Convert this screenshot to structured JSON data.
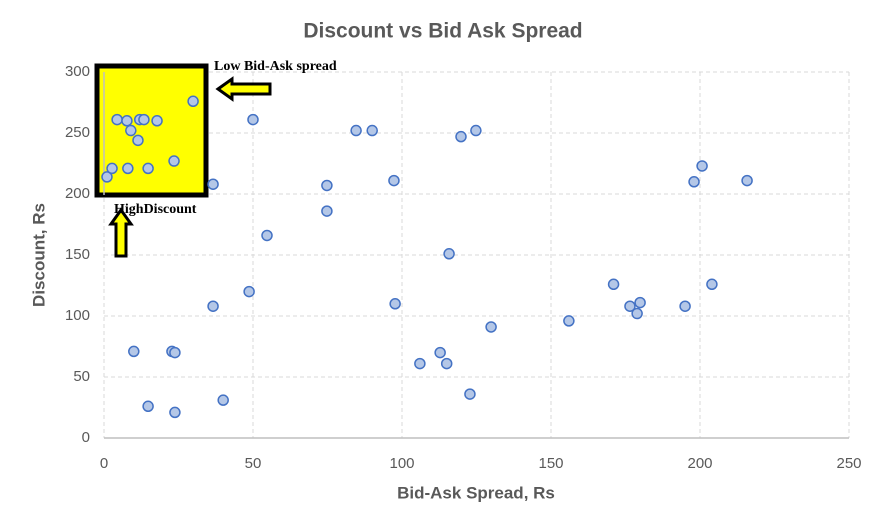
{
  "chart_data": {
    "type": "scatter",
    "title": "Discount vs Bid Ask Spread",
    "x_label": "Bid-Ask Spread, Rs",
    "y_label": "Discount, Rs",
    "annotations": [
      "Low Bid-Ask spread",
      "HighDiscount"
    ],
    "series": [
      {
        "color": "#4472c4",
        "x": [
          1,
          2.7,
          4.4,
          7.7,
          9,
          11.4,
          12,
          13.4,
          17.8,
          8,
          14.8,
          23.5,
          29.9,
          36.6,
          50,
          48.7,
          36.6,
          54.7,
          10,
          22.8,
          23.8,
          14.8,
          23.8,
          40,
          74.8,
          74.8,
          84.6,
          90,
          97.3,
          97.7,
          106,
          112.8,
          115,
          115.8,
          119.8,
          124.8,
          122.8,
          129.9,
          156,
          171,
          176.5,
          178.9,
          179.9,
          195,
          198,
          200.7,
          204,
          215.8
        ],
        "values": [
          214,
          221,
          261,
          260,
          252,
          244,
          261,
          261,
          260,
          221,
          221,
          227,
          276,
          208,
          261,
          120,
          108,
          166,
          71,
          71,
          70,
          26,
          21,
          31,
          207,
          186,
          252,
          252,
          211,
          110,
          61,
          70,
          61,
          151,
          247,
          252,
          36,
          91,
          96,
          126,
          108,
          102,
          111,
          108,
          210,
          223,
          126,
          211
        ]
      }
    ],
    "xlim": [
      0,
      250
    ],
    "xticks": [
      0,
      50,
      100,
      150,
      200,
      250
    ],
    "ylim": [
      0,
      300
    ],
    "yticks": [
      0,
      50,
      100,
      150,
      200,
      250,
      300
    ],
    "grid": true
  }
}
